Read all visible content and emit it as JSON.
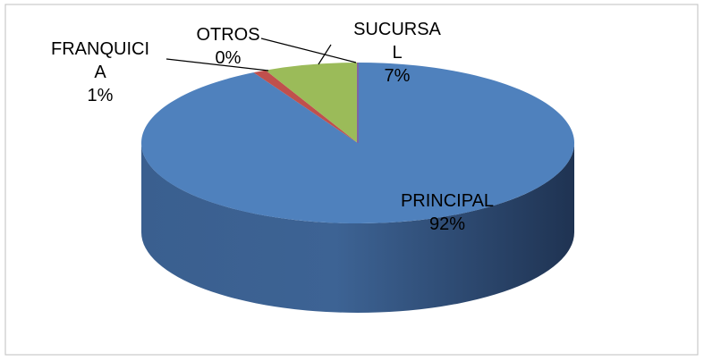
{
  "chart_data": {
    "type": "pie3d",
    "categories": [
      "PRINCIPAL",
      "FRANQUICIA",
      "SUCURSAL",
      "OTROS"
    ],
    "values": [
      92,
      1,
      7,
      0
    ],
    "value_labels": [
      "92%",
      "1%",
      "7%",
      "0%"
    ],
    "colors": [
      "#4f81bd",
      "#c0504d",
      "#9bbb59",
      "#8064a2"
    ]
  }
}
